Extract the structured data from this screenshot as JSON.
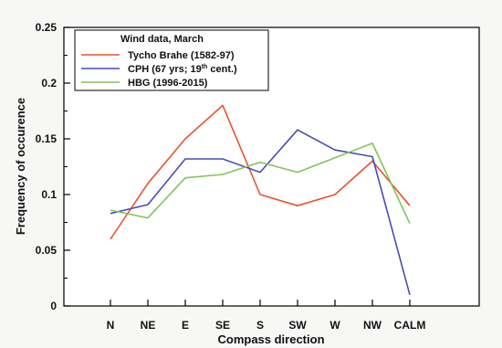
{
  "chart_data": {
    "type": "line",
    "title": "",
    "xlabel": "Compass direction",
    "ylabel": "Frequency of occurence",
    "categories": [
      "N",
      "NE",
      "E",
      "SE",
      "S",
      "SW",
      "W",
      "NW",
      "CALM"
    ],
    "ylim": [
      0,
      0.25
    ],
    "yticks": [
      "0",
      "0.05",
      "0.1",
      "0.15",
      "0.2",
      "0.25"
    ],
    "grid": false,
    "legend": {
      "title": "Wind data, March",
      "placement": "top-left"
    },
    "series": [
      {
        "name": "Tycho Brahe (1582-97)",
        "color": "#e8532f",
        "values": [
          0.06,
          0.11,
          0.15,
          0.18,
          0.1,
          0.09,
          0.1,
          0.13,
          0.09
        ]
      },
      {
        "name": "CPH (67 yrs; 19th cent.)",
        "name_parts": {
          "before": "CPH (67 yrs; 19",
          "sup": "th",
          "after": " cent.)"
        },
        "color": "#4a4ab8",
        "values": [
          0.083,
          0.091,
          0.132,
          0.132,
          0.12,
          0.158,
          0.14,
          0.134,
          0.01
        ]
      },
      {
        "name": "HBG (1996-2015)",
        "color": "#82c45a",
        "values": [
          0.086,
          0.079,
          0.115,
          0.118,
          0.129,
          0.12,
          0.133,
          0.146,
          0.074
        ]
      }
    ]
  }
}
